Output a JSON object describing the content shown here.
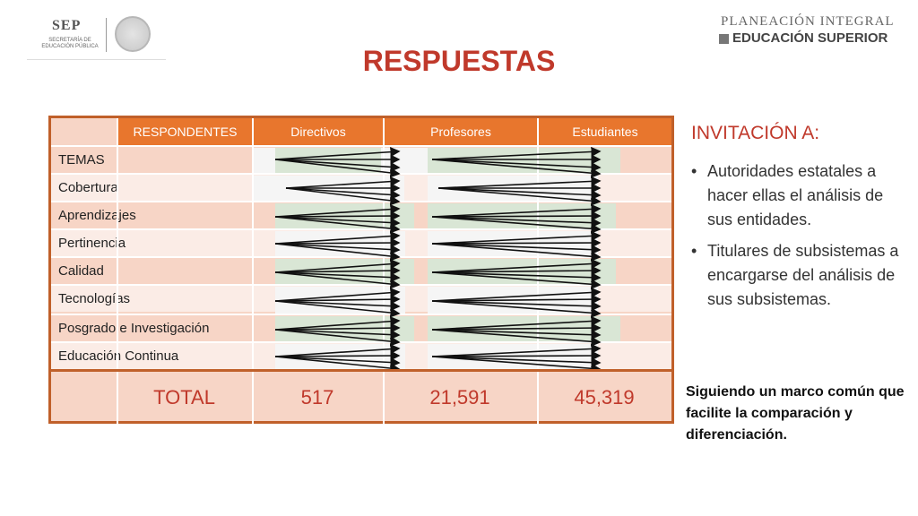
{
  "header": {
    "left_logo": {
      "acronym": "SEP",
      "subtitle": "SECRETARÍA DE EDUCACIÓN PÚBLICA"
    },
    "right_logo": {
      "top": "PLANEACIÓN INTEGRAL",
      "bottom": "EDUCACIÓN SUPERIOR"
    },
    "title": "RESPUESTAS"
  },
  "table": {
    "header_blank": "",
    "columns": [
      "RESPONDENTES",
      "Directivos",
      "Profesores",
      "Estudiantes"
    ],
    "rows": [
      "TEMAS",
      "Cobertura",
      "Aprendizajes",
      "Pertinencia",
      "Calidad",
      "Tecnologías",
      "Posgrado e Investigación",
      "Educación Continua"
    ],
    "total": {
      "label": "TOTAL",
      "values": [
        "517",
        "21,591",
        "45,319"
      ]
    }
  },
  "invitation": {
    "title": "INVITACIÓN A:",
    "items": [
      "Autoridades estatales a hacer ellas el análisis de sus entidades.",
      "Titulares de subsistemas a encargarse del análisis de sus subsistemas."
    ]
  },
  "note": "Siguiendo un marco común que facilite la comparación y diferenciación.",
  "colors": {
    "accent": "#c0392b",
    "header_orange": "#e8762d",
    "border": "#c0602a"
  }
}
